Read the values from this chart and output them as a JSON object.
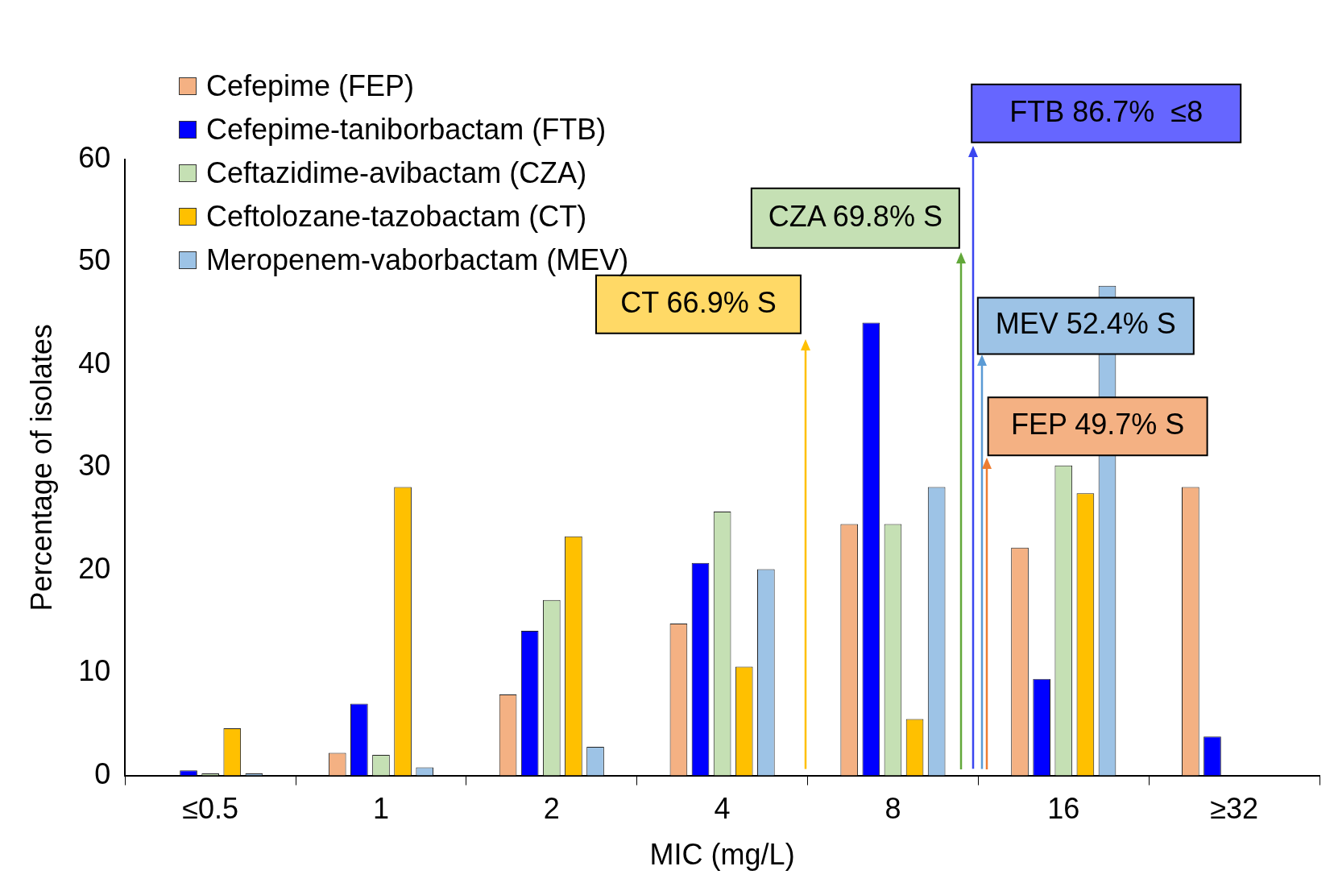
{
  "chart_data": {
    "type": "bar",
    "xlabel": "MIC (mg/L)",
    "ylabel": "Percentage of isolates",
    "categories": [
      "≤0.5",
      "1",
      "2",
      "4",
      "8",
      "16",
      "≥32"
    ],
    "series": [
      {
        "name": "Cefepime (FEP)",
        "color": "#f4b183",
        "values": [
          0,
          2.2,
          7.9,
          14.8,
          24.5,
          22.2,
          28.1
        ]
      },
      {
        "name": "Cefepime-taniborbactam (FTB)",
        "color": "#0000ff",
        "values": [
          0.5,
          7.0,
          14.1,
          20.7,
          44.1,
          9.4,
          3.8
        ]
      },
      {
        "name": "Ceftazidime-avibactam (CZA)",
        "color": "#c5e0b4",
        "values": [
          0.2,
          2.0,
          17.1,
          25.7,
          24.5,
          30.2,
          0
        ]
      },
      {
        "name": "Ceftolozane-tazobactam (CT)",
        "color": "#ffc000",
        "values": [
          4.6,
          28.1,
          23.3,
          10.6,
          5.5,
          27.5,
          0
        ]
      },
      {
        "name": "Meropenem-vaborbactam (MEV)",
        "color": "#9dc3e6",
        "values": [
          0.2,
          0.8,
          2.8,
          20.1,
          28.1,
          47.7,
          0
        ]
      }
    ],
    "ylim": [
      0,
      60
    ],
    "yticks": [
      0,
      10,
      20,
      30,
      40,
      50,
      60
    ],
    "grid": false,
    "legend": "top left",
    "annotations": [
      "FTB 86.7%  ≤8",
      "CZA 69.8% S",
      "CT 66.9% S",
      "MEV 52.4% S",
      "FEP 49.7% S"
    ]
  }
}
